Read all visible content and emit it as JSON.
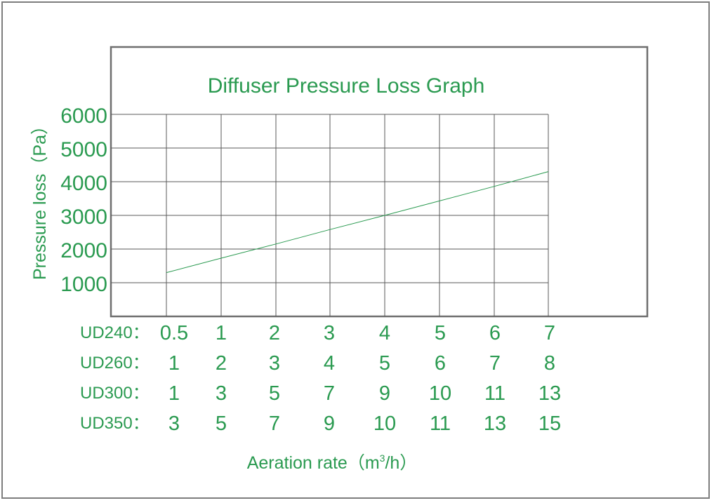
{
  "chart_data": {
    "type": "line",
    "title": "Diffuser Pressure Loss Graph",
    "ylabel": "Pressure loss（Pa）",
    "xlabel_prefix": "Aeration rate（m",
    "xlabel_sup": "3",
    "xlabel_suffix": "/h）",
    "yticks": [
      "1000",
      "2000",
      "3000",
      "4000",
      "5000",
      "6000"
    ],
    "ylim": [
      0,
      6000
    ],
    "x_rows": [
      {
        "name": "UD240：",
        "ticks": [
          "0.5",
          "1",
          "2",
          "3",
          "4",
          "5",
          "6",
          "7"
        ]
      },
      {
        "name": "UD260：",
        "ticks": [
          "1",
          "2",
          "3",
          "4",
          "5",
          "6",
          "7",
          "8"
        ]
      },
      {
        "name": "UD300：",
        "ticks": [
          "1",
          "3",
          "5",
          "7",
          "9",
          "10",
          "11",
          "13"
        ]
      },
      {
        "name": "UD350：",
        "ticks": [
          "3",
          "5",
          "7",
          "9",
          "10",
          "11",
          "13",
          "15"
        ]
      }
    ],
    "series": [
      {
        "x": [
          "0.5",
          "1",
          "2",
          "3",
          "4",
          "5",
          "6",
          "7"
        ],
        "values": [
          1300,
          1730,
          2150,
          2580,
          3000,
          3430,
          3860,
          4300
        ]
      }
    ],
    "grid": true,
    "colors": {
      "text": "#2a9a50",
      "line": "#2a9a50",
      "grid": "#5a5a5a",
      "frame": "#6e6e6e"
    }
  }
}
